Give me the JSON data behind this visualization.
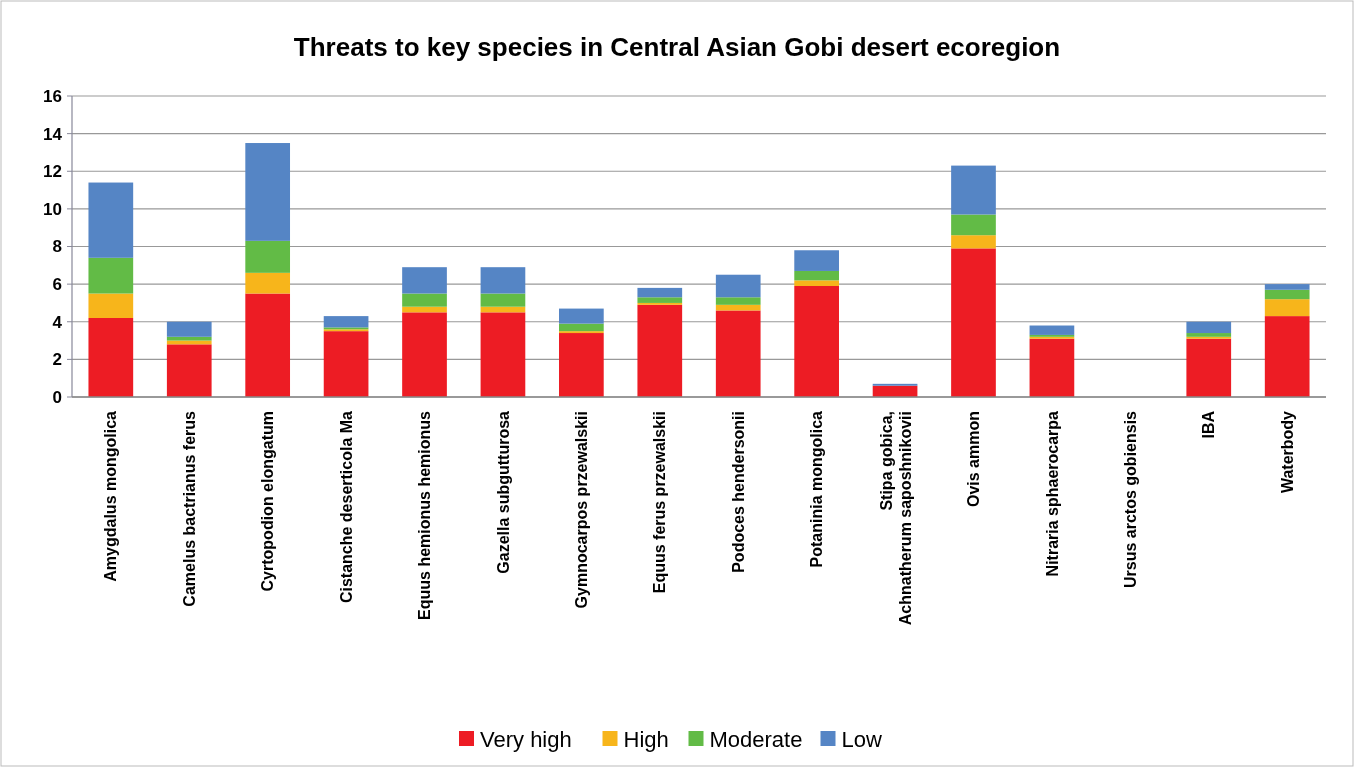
{
  "chart_data": {
    "type": "bar",
    "title": "Threats to key species in Central Asian Gobi desert ecoregion",
    "categories": [
      "Amygdalus mongolica",
      "Camelus bactrianus ferus",
      "Cyrtopodion elongatum",
      "Cistanche deserticola Ma",
      "Equus hemionus hemionus",
      "Gazella subgutturosa",
      "Gymnocarpos przewalskii",
      "Equus ferus przewalskii",
      "Podoces hendersonii",
      "Potaninia mongolica",
      "Stipa gobica, Achnatherum saposhnikovii",
      "Ovis ammon",
      "Nitraria sphaerocarpa",
      "Ursus arctos gobiensis",
      "IBA",
      "Waterbody"
    ],
    "series": [
      {
        "name": "Very high",
        "color": "#ed1c24",
        "values": [
          4.2,
          2.8,
          5.5,
          3.5,
          4.5,
          4.5,
          3.4,
          4.9,
          4.6,
          5.9,
          0.6,
          7.9,
          3.1,
          0,
          3.1,
          4.3
        ]
      },
      {
        "name": "High",
        "color": "#f7b51b",
        "values": [
          1.3,
          0.2,
          1.1,
          0.1,
          0.3,
          0.3,
          0.1,
          0.1,
          0.3,
          0.3,
          0,
          0.7,
          0.1,
          0,
          0.1,
          0.9
        ]
      },
      {
        "name": "Moderate",
        "color": "#62bb46",
        "values": [
          1.9,
          0.2,
          1.7,
          0.1,
          0.7,
          0.7,
          0.4,
          0.3,
          0.4,
          0.5,
          0,
          1.1,
          0.1,
          0,
          0.2,
          0.5
        ]
      },
      {
        "name": "Low",
        "color": "#5585c5",
        "values": [
          4.0,
          0.8,
          5.2,
          0.6,
          1.4,
          1.4,
          0.8,
          0.5,
          1.2,
          1.1,
          0.1,
          2.6,
          0.5,
          0,
          0.6,
          0.3
        ]
      }
    ],
    "stacked": true,
    "ylim": [
      0,
      16
    ],
    "yticks": [
      0,
      2,
      4,
      6,
      8,
      10,
      12,
      14,
      16
    ],
    "grid": "y",
    "legend": "bottom"
  }
}
